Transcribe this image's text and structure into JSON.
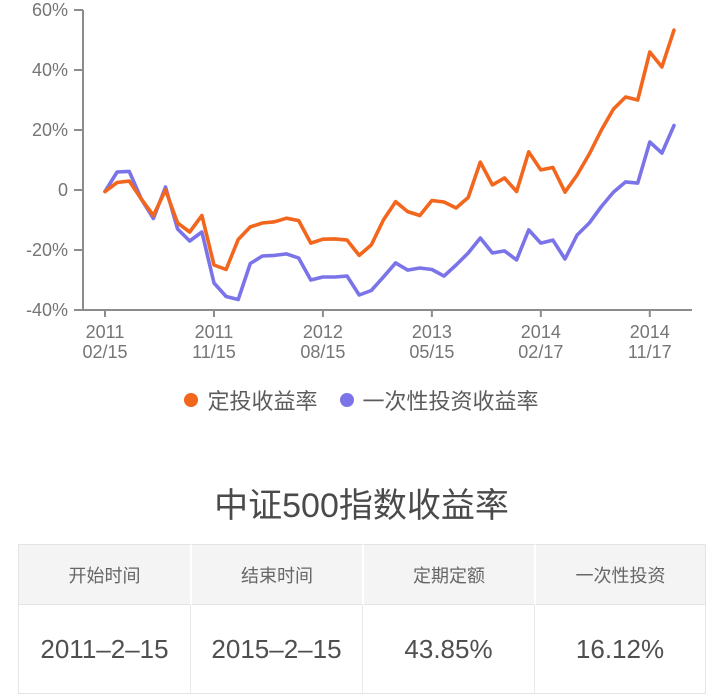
{
  "chart_data": {
    "type": "line",
    "title": "中证500指数收益率",
    "grid": false,
    "legend_position": "bottom",
    "ylim": [
      -40,
      60
    ],
    "y_ticks": [
      {
        "label": "60%",
        "value": 60
      },
      {
        "label": "40%",
        "value": 40
      },
      {
        "label": "20%",
        "value": 20
      },
      {
        "label": "0",
        "value": 0
      },
      {
        "label": "-20%",
        "value": -20
      },
      {
        "label": "-40%",
        "value": -40
      }
    ],
    "x_ticks": [
      {
        "line1": "2011",
        "line2": "02/15",
        "index": 0
      },
      {
        "line1": "2011",
        "line2": "11/15",
        "index": 9
      },
      {
        "line1": "2012",
        "line2": "08/15",
        "index": 18
      },
      {
        "line1": "2013",
        "line2": "05/15",
        "index": 27
      },
      {
        "line1": "2014",
        "line2": "02/17",
        "index": 36
      },
      {
        "line1": "2014",
        "line2": "11/17",
        "index": 45
      }
    ],
    "x_months": [
      "2011-02",
      "2011-03",
      "2011-04",
      "2011-05",
      "2011-06",
      "2011-07",
      "2011-08",
      "2011-09",
      "2011-10",
      "2011-11",
      "2011-12",
      "2012-01",
      "2012-02",
      "2012-03",
      "2012-04",
      "2012-05",
      "2012-06",
      "2012-07",
      "2012-08",
      "2012-09",
      "2012-10",
      "2012-11",
      "2012-12",
      "2013-01",
      "2013-02",
      "2013-03",
      "2013-04",
      "2013-05",
      "2013-06",
      "2013-07",
      "2013-08",
      "2013-09",
      "2013-10",
      "2013-11",
      "2013-12",
      "2014-01",
      "2014-02",
      "2014-03",
      "2014-04",
      "2014-05",
      "2014-06",
      "2014-07",
      "2014-08",
      "2014-09",
      "2014-10",
      "2014-11",
      "2014-12",
      "2015-01"
    ],
    "series": [
      {
        "key": "regular-investment",
        "name": "定投收益率",
        "color": "#f2661d",
        "values": [
          -0.5,
          2.5,
          3.0,
          -3.0,
          -8.5,
          0.0,
          -11.0,
          -14.0,
          -8.5,
          -25.0,
          -26.5,
          -16.5,
          -12.3,
          -11.0,
          -10.6,
          -9.4,
          -10.2,
          -17.7,
          -16.4,
          -16.3,
          -16.7,
          -21.8,
          -18.3,
          -10.0,
          -3.9,
          -7.2,
          -8.5,
          -3.5,
          -4.0,
          -6.0,
          -2.5,
          9.3,
          1.7,
          4.0,
          -0.5,
          12.7,
          6.7,
          7.5,
          -0.7,
          5.0,
          12.0,
          20.0,
          27.0,
          31.0,
          30.0,
          46.0,
          41.0,
          53.3
        ]
      },
      {
        "key": "lump-sum-investment",
        "name": "一次性投资收益率",
        "color": "#7b74e8",
        "values": [
          -0.5,
          6.0,
          6.2,
          -3.0,
          -9.5,
          1.0,
          -13.0,
          -17.0,
          -14.0,
          -31.0,
          -35.5,
          -36.5,
          -24.5,
          -22.0,
          -21.8,
          -21.3,
          -22.7,
          -30.0,
          -29.0,
          -29.0,
          -28.7,
          -35.0,
          -33.5,
          -29.0,
          -24.3,
          -26.7,
          -26.0,
          -26.5,
          -28.7,
          -25.0,
          -21.0,
          -16.0,
          -21.0,
          -20.3,
          -23.3,
          -13.3,
          -17.7,
          -16.7,
          -23.0,
          -15.0,
          -11.0,
          -5.5,
          -0.7,
          2.7,
          2.3,
          16.0,
          12.3,
          21.5
        ]
      }
    ]
  },
  "legend": {
    "items": [
      {
        "key": "regular-investment",
        "label": "定投收益率",
        "color": "#f2661d"
      },
      {
        "key": "lump-sum-investment",
        "label": "一次性投资收益率",
        "color": "#7b74e8"
      }
    ]
  },
  "table": {
    "headers": [
      "开始时间",
      "结束时间",
      "定期定额",
      "一次性投资"
    ],
    "rows": [
      [
        "2011–2–15",
        "2015–2–15",
        "43.85%",
        "16.12%"
      ]
    ]
  },
  "colors": {
    "background": "#ffffff",
    "axis": "#8c8c8c",
    "axis_label": "#757575",
    "title": "#4a4a4a",
    "legend_text": "#5c5c5c",
    "table_header_bg": "#f4f4f5",
    "table_border": "#e4e4e6",
    "table_header_text": "#666666",
    "table_cell_text": "#4f4f4f",
    "series_orange": "#f2661d",
    "series_purple": "#7b74e8"
  }
}
